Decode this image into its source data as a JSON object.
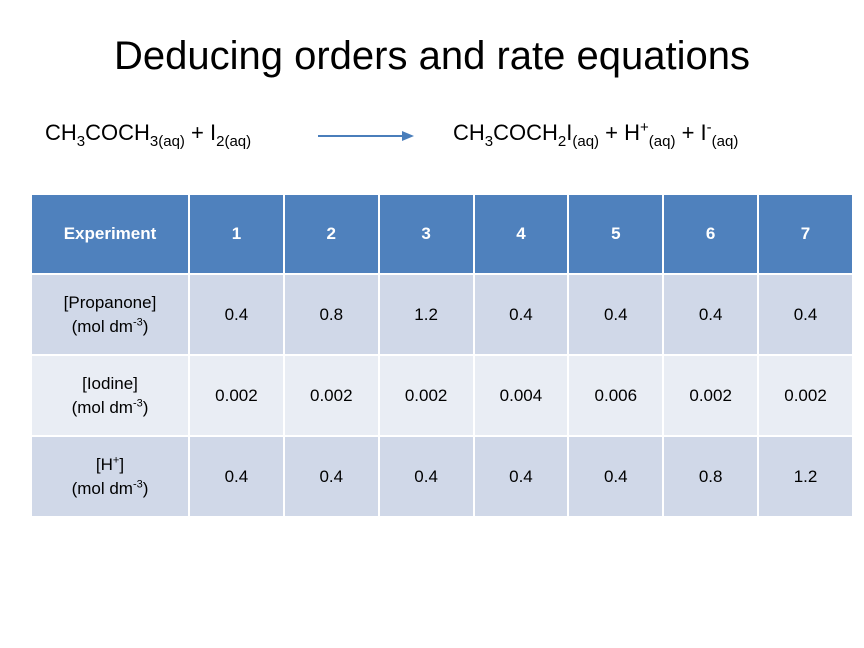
{
  "title": "Deducing orders and rate equations",
  "equation": {
    "lhs": {
      "a1": "CH",
      "a1_sub": "3",
      "a2": "COCH",
      "a2_sub": "3(aq)",
      "plus": " + I",
      "i_sub": "2(aq)"
    },
    "rhs": {
      "b1": "CH",
      "b1_sub": "3",
      "b2": "COCH",
      "b2_sub": "2",
      "b3": "I",
      "b3_sub": "(aq)",
      "plus1": " + H",
      "h_sup": "+",
      "h_sub": "(aq)",
      "plus2": " + I",
      "i_sup": "-",
      "i_sub": "(aq)"
    }
  },
  "table": {
    "header": [
      "Experiment",
      "1",
      "2",
      "3",
      "4",
      "5",
      "6",
      "7"
    ],
    "rows": [
      {
        "label_line1": "[Propanone]",
        "label_unit": "(mol dm",
        "label_exp": "-3",
        "label_close": ")",
        "values": [
          "0.4",
          "0.8",
          "1.2",
          "0.4",
          "0.4",
          "0.4",
          "0.4"
        ]
      },
      {
        "label_line1": "[Iodine]",
        "label_unit": "(mol dm",
        "label_exp": "-3",
        "label_close": ")",
        "values": [
          "0.002",
          "0.002",
          "0.002",
          "0.004",
          "0.006",
          "0.002",
          "0.002"
        ]
      },
      {
        "label_line1": "[H",
        "label_line1_sup": "+",
        "label_line1_close": "]",
        "label_unit": "(mol dm",
        "label_exp": "-3",
        "label_close": ")",
        "values": [
          "0.4",
          "0.4",
          "0.4",
          "0.4",
          "0.4",
          "0.8",
          "1.2"
        ]
      }
    ]
  },
  "colors": {
    "header_bg": "#4f81bd",
    "row_dark": "#d0d8e8",
    "row_light": "#e9edf4",
    "arrow": "#4a7ebb"
  }
}
